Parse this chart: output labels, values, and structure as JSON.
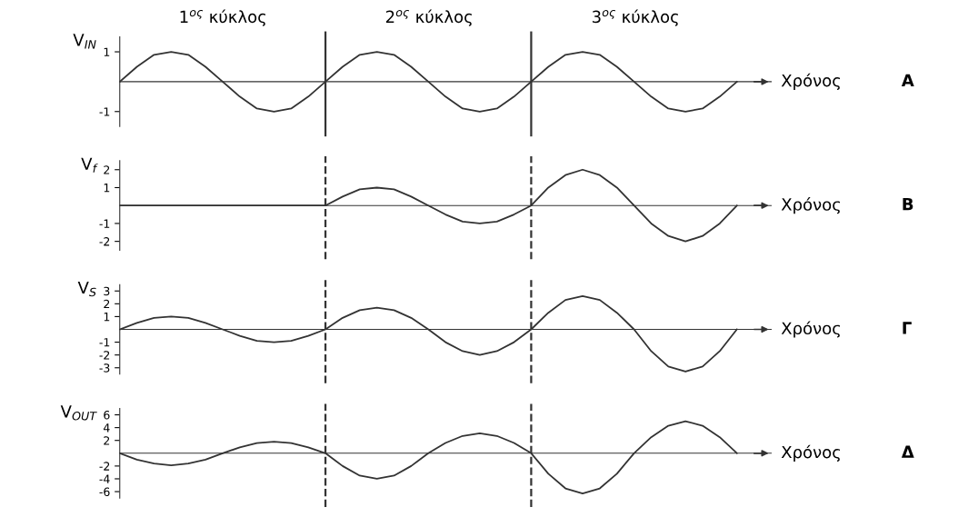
{
  "chart_data": [
    {
      "type": "line",
      "ylabel": "V$_{IN}$",
      "xlabel": "Χρόνος",
      "categories": [
        null,
        null,
        null,
        null,
        null,
        null,
        null,
        null,
        null,
        null,
        null,
        null,
        null,
        null,
        null,
        null,
        null,
        null,
        null,
        null,
        null,
        null,
        null,
        null,
        null,
        null,
        null,
        null,
        null,
        null,
        null,
        null,
        null,
        null,
        null,
        null,
        null
      ],
      "ylim": [
        -1.5,
        1.5
      ],
      "yticks": [
        1,
        -1
      ],
      "tick_labels": "y",
      "grid": false,
      "marker": "none",
      "line_style": "solid",
      "series": [
        {
          "color": "#333333",
          "values": [
            0,
            0.5,
            0.9,
            1,
            0.9,
            0.5,
            0,
            -0.5,
            -0.9,
            -1,
            -0.9,
            -0.5,
            0,
            0.5,
            0.9,
            1,
            0.9,
            0.5,
            0,
            -0.5,
            -0.9,
            -1,
            -0.9,
            -0.5,
            0,
            0.5,
            0.9,
            1,
            0.9,
            0.5,
            0,
            -0.5,
            -0.9,
            -1,
            -0.9,
            -0.5,
            0
          ]
        }
      ],
      "annotations": [
        "1$^{ος}$ κύκλος",
        "2$^{ος}$ κύκλος",
        "3$^{ος}$ κύκλος",
        "A"
      ]
    },
    {
      "type": "line",
      "ylabel": "V$_{f}$",
      "xlabel": "Χρόνος",
      "categories": [
        null,
        null,
        null,
        null,
        null,
        null,
        null,
        null,
        null,
        null,
        null,
        null,
        null,
        null,
        null,
        null,
        null,
        null,
        null,
        null,
        null,
        null,
        null,
        null,
        null,
        null,
        null,
        null,
        null,
        null,
        null,
        null,
        null,
        null,
        null,
        null,
        null
      ],
      "ylim": [
        -2.5,
        2.5
      ],
      "yticks": [
        2,
        1,
        -1,
        -2
      ],
      "tick_labels": "y",
      "grid": false,
      "marker": "none",
      "line_style": "solid",
      "series": [
        {
          "color": "#333333",
          "values": [
            0,
            0,
            0,
            0,
            0,
            0,
            0,
            0,
            0,
            0,
            0,
            0,
            0,
            0.5,
            0.9,
            1,
            0.9,
            0.5,
            0,
            -0.5,
            -0.9,
            -1,
            -0.9,
            -0.5,
            0,
            1,
            1.7,
            2,
            1.7,
            1,
            0,
            -1,
            -1.7,
            -2,
            -1.7,
            -1,
            0
          ]
        }
      ],
      "annotations": [
        "B"
      ]
    },
    {
      "type": "line",
      "ylabel": "V$_{S}$",
      "xlabel": "Χρόνος",
      "categories": [
        null,
        null,
        null,
        null,
        null,
        null,
        null,
        null,
        null,
        null,
        null,
        null,
        null,
        null,
        null,
        null,
        null,
        null,
        null,
        null,
        null,
        null,
        null,
        null,
        null,
        null,
        null,
        null,
        null,
        null,
        null,
        null,
        null,
        null,
        null,
        null,
        null
      ],
      "ylim": [
        -3.5,
        3.5
      ],
      "yticks": [
        3,
        2,
        1,
        -1,
        -2,
        -3
      ],
      "tick_labels": "y",
      "grid": false,
      "marker": "none",
      "line_style": "solid",
      "series": [
        {
          "color": "#333333",
          "values": [
            0,
            0.5,
            0.9,
            1,
            0.9,
            0.5,
            0,
            -0.5,
            -0.9,
            -1,
            -0.9,
            -0.5,
            0,
            0.9,
            1.5,
            1.7,
            1.5,
            0.9,
            0,
            -1,
            -1.7,
            -2,
            -1.7,
            -1,
            0,
            1.3,
            2.3,
            2.6,
            2.3,
            1.3,
            0,
            -1.7,
            -2.9,
            -3.3,
            -2.9,
            -1.7,
            0
          ]
        }
      ],
      "annotations": [
        "Γ"
      ]
    },
    {
      "type": "line",
      "ylabel": "V$_{OUT}$",
      "xlabel": "Χρόνος",
      "categories": [
        null,
        null,
        null,
        null,
        null,
        null,
        null,
        null,
        null,
        null,
        null,
        null,
        null,
        null,
        null,
        null,
        null,
        null,
        null,
        null,
        null,
        null,
        null,
        null,
        null,
        null,
        null,
        null,
        null,
        null,
        null,
        null,
        null,
        null,
        null,
        null,
        null
      ],
      "ylim": [
        -7,
        7
      ],
      "yticks": [
        6,
        4,
        2,
        -2,
        -4,
        -6
      ],
      "tick_labels": "y",
      "grid": false,
      "marker": "none",
      "line_style": "solid",
      "series": [
        {
          "color": "#333333",
          "values": [
            0,
            -1,
            -1.6,
            -1.9,
            -1.6,
            -1,
            0,
            0.9,
            1.6,
            1.8,
            1.6,
            0.9,
            0,
            -2,
            -3.5,
            -4,
            -3.5,
            -2,
            0,
            1.6,
            2.7,
            3.1,
            2.7,
            1.6,
            0,
            -3.2,
            -5.5,
            -6.3,
            -5.5,
            -3.2,
            0,
            2.5,
            4.3,
            5,
            4.3,
            2.5,
            0
          ]
        }
      ],
      "annotations": [
        "Δ"
      ]
    }
  ]
}
